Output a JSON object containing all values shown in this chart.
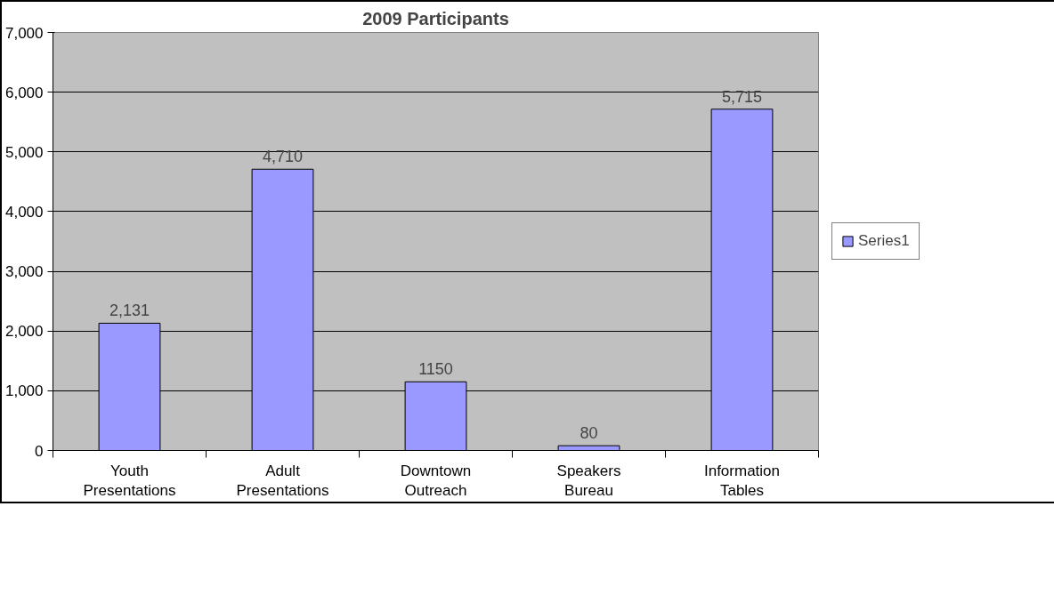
{
  "chart_data": {
    "type": "bar",
    "title": "2009 Participants",
    "categories": [
      "Youth\nPresentations",
      "Adult\nPresentations",
      "Downtown\nOutreach",
      "Speakers\nBureau",
      "Information\nTables"
    ],
    "series": [
      {
        "name": "Series1",
        "color": "#9999ff",
        "values": [
          2131,
          4710,
          1150,
          80,
          5715
        ],
        "value_labels": [
          "2,131",
          "4,710",
          "1150",
          "80",
          "5,715"
        ]
      }
    ],
    "ylim": [
      0,
      7000
    ],
    "yticks": [
      0,
      {
        "value": 1000,
        "label": "1,000"
      },
      {
        "value": 2000,
        "label": "2,000"
      },
      {
        "value": 3000,
        "label": "3,000"
      },
      {
        "value": 4000,
        "label": "4,000"
      },
      {
        "value": 5000,
        "label": "5,000"
      },
      {
        "value": 6000,
        "label": "6,000"
      },
      {
        "value": 7000,
        "label": "7,000"
      }
    ],
    "grid": "y",
    "legend": "right"
  }
}
